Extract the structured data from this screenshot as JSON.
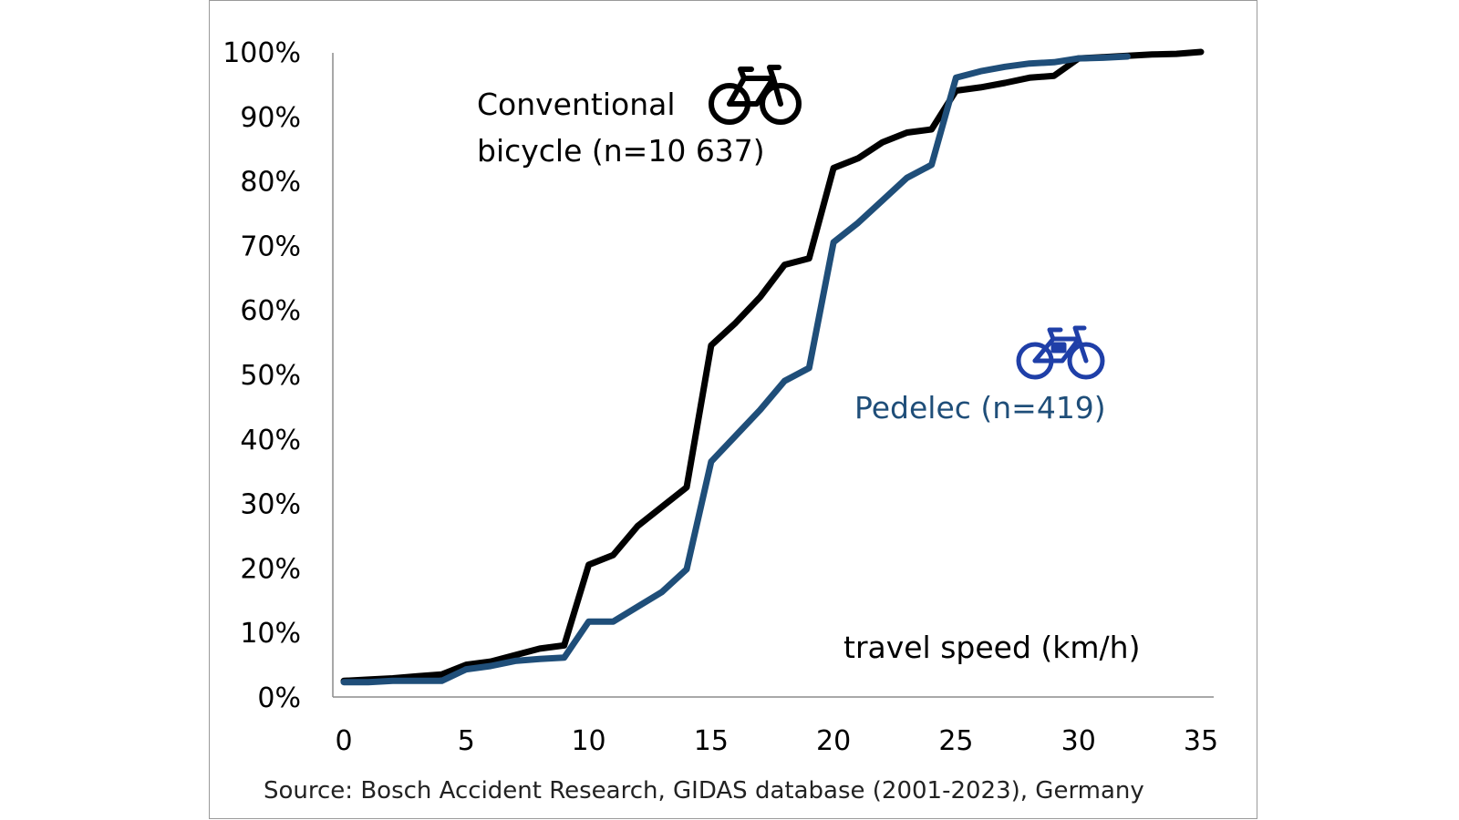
{
  "chart_data": {
    "type": "line",
    "xlabel": "travel speed (km/h)",
    "ylabel": "",
    "xlim": [
      0,
      35
    ],
    "ylim": [
      0,
      100
    ],
    "x_ticks": [
      "0",
      "5",
      "10",
      "15",
      "20",
      "25",
      "30",
      "35"
    ],
    "y_ticks": [
      "0%",
      "10%",
      "20%",
      "30%",
      "40%",
      "50%",
      "60%",
      "70%",
      "80%",
      "90%",
      "100%"
    ],
    "grid": false,
    "series": [
      {
        "name_line1": "Conventional",
        "name_line2": "bicycle (n=10 637)",
        "color": "#000000",
        "icon": "bicycle-icon",
        "x": [
          0,
          1,
          2,
          3,
          4,
          5,
          6,
          7,
          8,
          9,
          10,
          11,
          12,
          13,
          14,
          15,
          16,
          17,
          18,
          19,
          20,
          21,
          22,
          23,
          24,
          25,
          26,
          27,
          28,
          29,
          30,
          31,
          32,
          33,
          34,
          35
        ],
        "values": [
          2.5,
          2.7,
          2.9,
          3.2,
          3.5,
          5.0,
          5.5,
          6.5,
          7.5,
          8.0,
          20.5,
          22,
          26.5,
          29.5,
          32.5,
          54.5,
          58,
          62,
          67,
          68,
          82,
          83.5,
          86,
          87.5,
          88,
          94,
          94.5,
          95.2,
          96,
          96.3,
          99,
          99.2,
          99.4,
          99.6,
          99.7,
          100
        ]
      },
      {
        "name": "Pedelec (n=419)",
        "color": "#1f4e79",
        "icon": "e-bike-icon",
        "icon_color": "#1f3fa8",
        "x": [
          0,
          1,
          2,
          3,
          4,
          5,
          6,
          7,
          8,
          9,
          10,
          11,
          12,
          13,
          14,
          15,
          16,
          17,
          18,
          19,
          20,
          21,
          22,
          23,
          24,
          25,
          26,
          27,
          28,
          29,
          30,
          31,
          32
        ],
        "values": [
          2.3,
          2.3,
          2.5,
          2.5,
          2.5,
          4.3,
          4.8,
          5.6,
          5.9,
          6.1,
          11.7,
          11.7,
          14.0,
          16.3,
          19.8,
          36.5,
          40.5,
          44.5,
          49,
          51,
          70.5,
          73.5,
          77,
          80.5,
          82.5,
          96,
          97,
          97.7,
          98.2,
          98.4,
          99.0,
          99.1,
          99.3
        ]
      }
    ]
  },
  "source_note": "Source: Bosch Accident Research,  GIDAS database (2001-2023), Germany"
}
